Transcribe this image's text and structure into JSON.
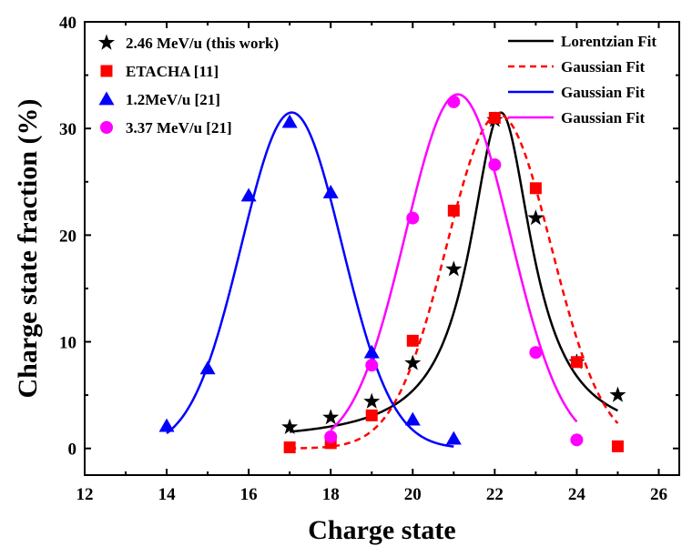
{
  "chart_data": {
    "type": "scatter",
    "xlabel": "Charge state",
    "ylabel": "Charge state fraction (%)",
    "xlim": [
      12,
      26.5
    ],
    "ylim": [
      -2.5,
      40
    ],
    "xticks": [
      12,
      14,
      16,
      18,
      20,
      22,
      24,
      26
    ],
    "yticks": [
      0,
      10,
      20,
      30,
      40
    ],
    "grid": false,
    "series": [
      {
        "name": "2.46 MeV/u (this work)",
        "marker": "star",
        "color": "#000000",
        "x": [
          17,
          18,
          19,
          20,
          21,
          22,
          23,
          24,
          25
        ],
        "y": [
          2.0,
          2.9,
          4.4,
          8.0,
          16.8,
          30.8,
          21.6,
          8.1,
          5.0
        ]
      },
      {
        "name": "ETACHA [11]",
        "marker": "square",
        "color": "#ff0000",
        "x": [
          17,
          18,
          19,
          20,
          21,
          22,
          23,
          24,
          25
        ],
        "y": [
          0.1,
          0.5,
          3.1,
          10.1,
          22.3,
          31.0,
          24.4,
          8.1,
          0.2
        ]
      },
      {
        "name": "1.2MeV/u [21]",
        "marker": "triangle",
        "color": "#0000ff",
        "x": [
          14,
          15,
          16,
          17,
          18,
          19,
          20,
          21
        ],
        "y": [
          2.1,
          7.5,
          23.7,
          30.6,
          24.0,
          9.0,
          2.7,
          0.9
        ]
      },
      {
        "name": "3.37 MeV/u [21]",
        "marker": "circle",
        "color": "#ff00ff",
        "x": [
          18,
          19,
          20,
          21,
          22,
          23,
          24
        ],
        "y": [
          1.1,
          7.8,
          21.6,
          32.5,
          26.6,
          9.0,
          0.8
        ]
      }
    ],
    "fits": [
      {
        "name": "Lorentzian Fit",
        "kind": "lorentzian",
        "color": "#000000",
        "dash": "solid",
        "x_range": [
          17,
          25
        ],
        "y0": 0.6,
        "A": 30.9,
        "xc": 22.15,
        "w": 1.85
      },
      {
        "name": "Gaussian Fit",
        "kind": "gaussian",
        "color": "#ff0000",
        "dash": "dashed",
        "x_range": [
          17,
          25
        ],
        "y0": 0.0,
        "A": 31.3,
        "xc": 22.1,
        "w": 2.55
      },
      {
        "name": "Gaussian Fit",
        "kind": "gaussian",
        "color": "#0000ff",
        "dash": "solid",
        "x_range": [
          14,
          21
        ],
        "y0": 0.0,
        "A": 31.5,
        "xc": 17.05,
        "w": 2.45
      },
      {
        "name": "Gaussian Fit",
        "kind": "gaussian",
        "color": "#ff00ff",
        "dash": "solid",
        "x_range": [
          18,
          24
        ],
        "y0": 0.0,
        "A": 33.2,
        "xc": 21.1,
        "w": 2.55
      }
    ],
    "legend_placement": "top-left (markers) and top-right (fits)"
  }
}
